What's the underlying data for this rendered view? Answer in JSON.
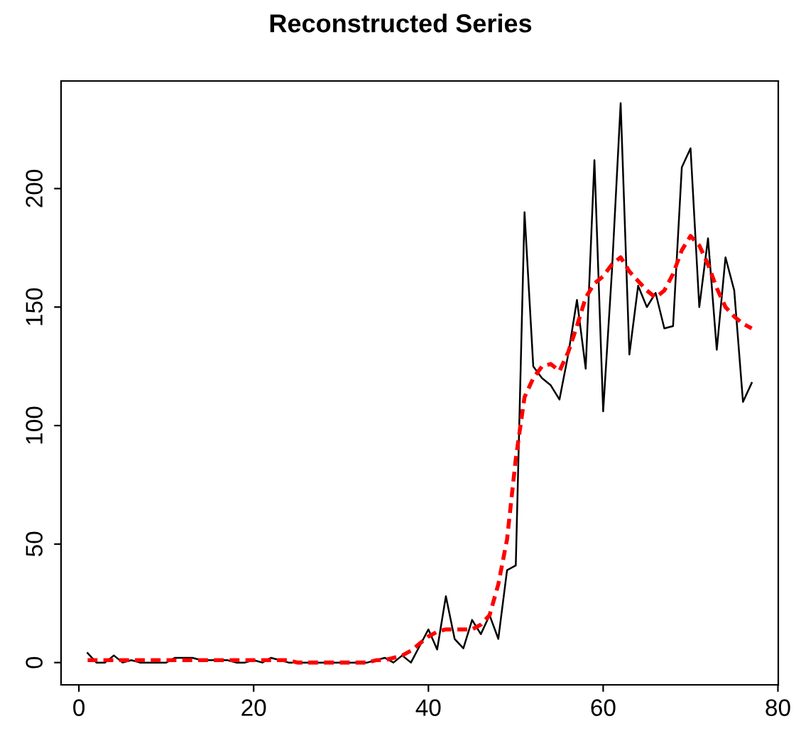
{
  "chart_data": {
    "type": "line",
    "title": "Reconstructed Series",
    "x": [
      1,
      2,
      3,
      4,
      5,
      6,
      7,
      8,
      9,
      10,
      11,
      12,
      13,
      14,
      15,
      16,
      17,
      18,
      19,
      20,
      21,
      22,
      23,
      24,
      25,
      26,
      27,
      28,
      29,
      30,
      31,
      32,
      33,
      34,
      35,
      36,
      37,
      38,
      39,
      40,
      41,
      42,
      43,
      44,
      45,
      46,
      47,
      48,
      49,
      50,
      51,
      52,
      53,
      54,
      55,
      56,
      57,
      58,
      59,
      60,
      61,
      62,
      63,
      64,
      65,
      66,
      67,
      68,
      69,
      70,
      71,
      72,
      73,
      74,
      75,
      76,
      77
    ],
    "series": [
      {
        "color": "#000000",
        "line_style": "solid",
        "values": [
          4,
          0,
          0,
          3,
          0,
          1,
          0,
          0,
          0,
          0,
          2,
          2,
          2,
          1,
          1,
          1,
          1,
          0,
          0,
          1,
          0,
          2,
          1,
          0,
          0,
          0,
          0,
          0,
          0,
          0,
          0,
          0,
          0,
          1,
          2,
          0,
          3,
          0,
          7,
          14,
          5.5,
          28,
          10,
          6,
          18,
          12,
          20,
          10,
          39,
          41,
          190,
          125,
          120,
          117,
          111,
          130,
          153,
          124,
          212,
          106,
          165,
          236,
          130,
          159,
          150,
          156,
          141,
          142,
          209,
          217,
          150,
          179,
          132,
          171,
          157,
          110,
          118
        ]
      },
      {
        "color": "#ff0000",
        "line_style": "dashed",
        "values": [
          1,
          1,
          1,
          1,
          1,
          1,
          1,
          1,
          1,
          1,
          1,
          1,
          1,
          1,
          1,
          1,
          1,
          1,
          1,
          1,
          1,
          1,
          1,
          1,
          0,
          0,
          0,
          0,
          0,
          0,
          0,
          0,
          0,
          1,
          1,
          2,
          3,
          5,
          8,
          11,
          13,
          14,
          14,
          14,
          14,
          16,
          20,
          33,
          52,
          86,
          112,
          120,
          125,
          126,
          123,
          131,
          142,
          154,
          160,
          163,
          168,
          171,
          165,
          161,
          157,
          154,
          157,
          164,
          174,
          180,
          176,
          168,
          158,
          150,
          146,
          143,
          141
        ]
      }
    ],
    "xlim": [
      -2.04,
      80.04
    ],
    "ylim": [
      -9.4,
      245.4
    ],
    "xticks": [
      0,
      20,
      40,
      60,
      80
    ],
    "yticks": [
      0,
      50,
      100,
      150,
      200
    ],
    "grid": false,
    "legend": false
  }
}
